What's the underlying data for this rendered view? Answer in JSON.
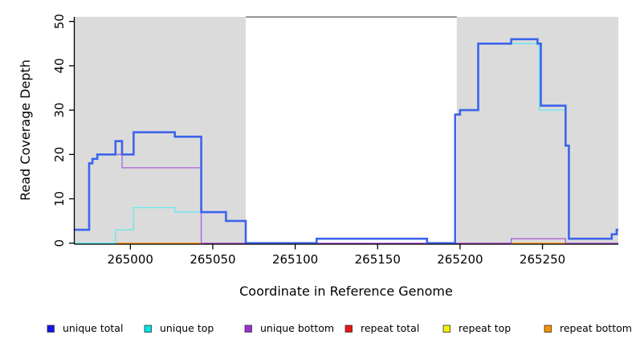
{
  "figure": {
    "x_axis": {
      "title": "Coordinate in Reference Genome",
      "ticks": [
        265000,
        265050,
        265100,
        265150,
        265200,
        265250
      ]
    },
    "y_axis": {
      "title": "Read Coverage Depth",
      "ticks": [
        0,
        10,
        20,
        30,
        40,
        50
      ]
    },
    "legend": [
      {
        "label": "unique total",
        "swatch": "#1414EE"
      },
      {
        "label": "unique top",
        "swatch": "#00E5E5"
      },
      {
        "label": "unique bottom",
        "swatch": "#9B2FD6"
      },
      {
        "label": "repeat total",
        "swatch": "#E81414"
      },
      {
        "label": "repeat top",
        "swatch": "#F0F000"
      },
      {
        "label": "repeat bottom",
        "swatch": "#F59400"
      }
    ],
    "colors": {
      "shaded_region": "#DBDBDB",
      "connector_line": "#8A8A8A",
      "axis": "#000000"
    }
  },
  "chart_data": {
    "type": "line",
    "subtype": "step-coverage-plot",
    "title": "",
    "xlabel": "Coordinate in Reference Genome",
    "ylabel": "Read Coverage Depth",
    "xlim": [
      264966,
      265296
    ],
    "ylim": [
      0,
      52
    ],
    "grid": false,
    "legend_position": "bottom",
    "shaded_regions": [
      {
        "from": 264966,
        "to": 265070
      },
      {
        "from": 265198,
        "to": 265296
      }
    ],
    "connector_line_value": 51,
    "series": [
      {
        "name": "unique total",
        "color": "#3D64EC",
        "line_width": 2.6,
        "steps": [
          [
            264966,
            3
          ],
          [
            264975,
            18
          ],
          [
            264977,
            19
          ],
          [
            264980,
            20
          ],
          [
            264991,
            23
          ],
          [
            264995,
            20
          ],
          [
            265002,
            25
          ],
          [
            265027,
            24
          ],
          [
            265043,
            7
          ],
          [
            265058,
            5
          ],
          [
            265070,
            0
          ],
          [
            265113,
            1
          ],
          [
            265180,
            0
          ],
          [
            265197,
            29
          ],
          [
            265200,
            30
          ],
          [
            265211,
            45
          ],
          [
            265231,
            46
          ],
          [
            265247,
            45
          ],
          [
            265249,
            31
          ],
          [
            265264,
            22
          ],
          [
            265266,
            1
          ],
          [
            265292,
            2
          ],
          [
            265295,
            3
          ]
        ]
      },
      {
        "name": "unique top",
        "color": "#63E9EF",
        "line_width": 1.3,
        "steps": [
          [
            264966,
            0
          ],
          [
            264991,
            3
          ],
          [
            265002,
            8
          ],
          [
            265027,
            7
          ],
          [
            265058,
            5
          ],
          [
            265070,
            0
          ],
          [
            265113,
            1
          ],
          [
            265180,
            0
          ],
          [
            265197,
            29
          ],
          [
            265200,
            30
          ],
          [
            265211,
            45
          ],
          [
            265248,
            30
          ],
          [
            265264,
            22
          ],
          [
            265266,
            1
          ],
          [
            265292,
            2
          ],
          [
            265295,
            3
          ]
        ]
      },
      {
        "name": "unique bottom",
        "color": "#AC5FD9",
        "line_width": 1.3,
        "steps": [
          [
            264966,
            3
          ],
          [
            264975,
            18
          ],
          [
            264977,
            19
          ],
          [
            264980,
            20
          ],
          [
            264995,
            17
          ],
          [
            265043,
            0
          ],
          [
            265231,
            1
          ],
          [
            265264,
            0
          ]
        ]
      },
      {
        "name": "repeat total",
        "color": "#D85064",
        "line_width": 1.2,
        "steps": [
          [
            264966,
            0
          ]
        ]
      },
      {
        "name": "repeat top",
        "color": "#F2F200",
        "line_width": 1.2,
        "steps": [
          [
            264966,
            0
          ]
        ]
      },
      {
        "name": "repeat bottom",
        "color": "#FF9D24",
        "line_width": 1.4,
        "steps": [
          [
            264966,
            0
          ]
        ]
      }
    ],
    "baseline_visible_segments": [
      {
        "color": "#93CE96",
        "from": 264966,
        "to": 264991
      },
      {
        "color": "#FF9D24",
        "from": 264991,
        "to": 265043
      },
      {
        "color": "#D85064",
        "from": 265043,
        "to": 265231
      },
      {
        "color": "#FF9D24",
        "from": 265231,
        "to": 265266
      },
      {
        "color": "#93CE96",
        "from": 265266,
        "to": 265296
      }
    ]
  }
}
